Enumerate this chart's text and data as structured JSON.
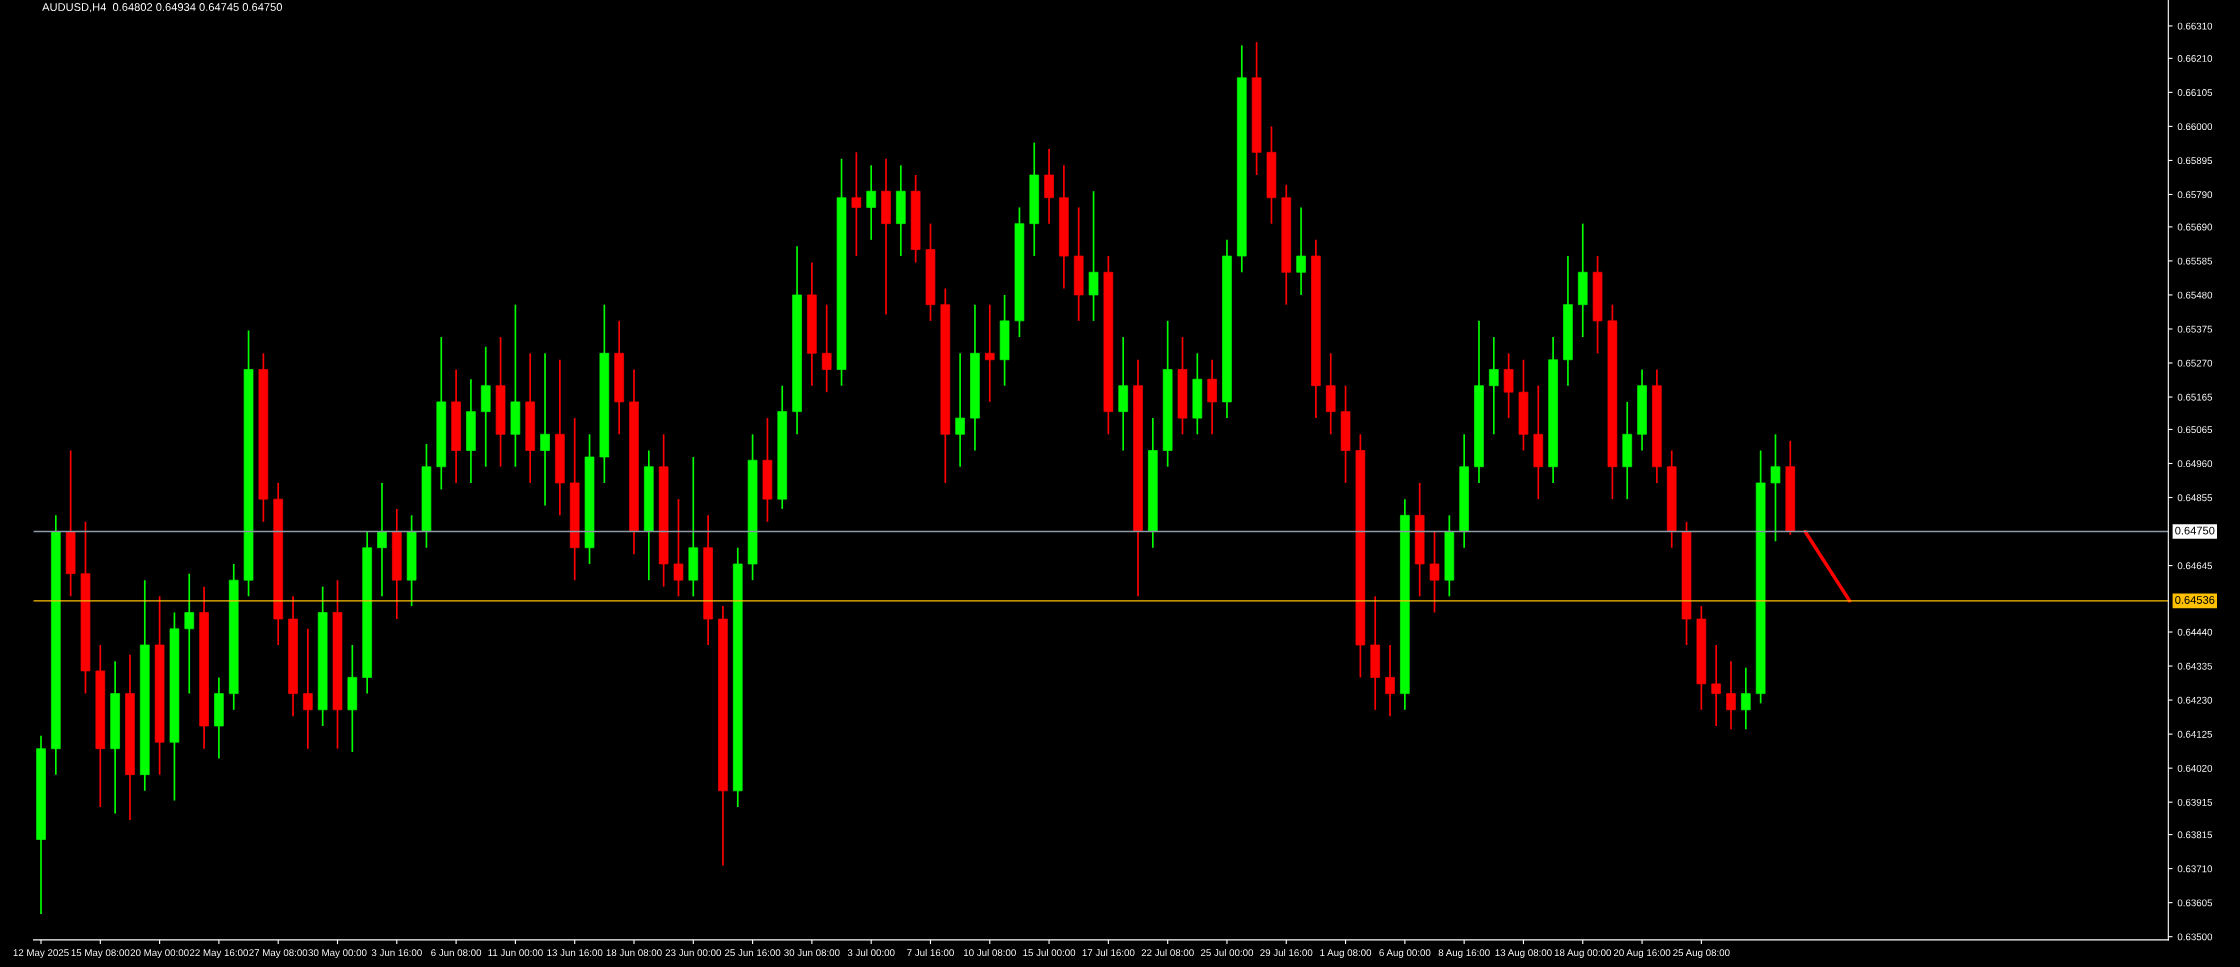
{
  "chart_data": {
    "type": "candlestick",
    "title": "AUDUSD,H4  0.64802 0.64934 0.64745 0.64750",
    "categories": [
      "12 May 2025",
      null,
      null,
      null,
      "15 May 08:00",
      null,
      null,
      null,
      "20 May 00:00",
      null,
      null,
      null,
      "22 May 16:00",
      null,
      null,
      null,
      "27 May 08:00",
      null,
      null,
      null,
      "30 May 00:00",
      null,
      null,
      null,
      "3 Jun 16:00",
      null,
      null,
      null,
      "6 Jun 08:00",
      null,
      null,
      null,
      "11 Jun 00:00",
      null,
      null,
      null,
      "13 Jun 16:00",
      null,
      null,
      null,
      "18 Jun 08:00",
      null,
      null,
      null,
      "23 Jun 00:00",
      null,
      null,
      null,
      "25 Jun 16:00",
      null,
      null,
      null,
      "30 Jun 08:00",
      null,
      null,
      null,
      "3 Jul 00:00",
      null,
      null,
      null,
      "7 Jul 16:00",
      null,
      null,
      null,
      "10 Jul 08:00",
      null,
      null,
      null,
      "15 Jul 00:00",
      null,
      null,
      null,
      "17 Jul 16:00",
      null,
      null,
      null,
      "22 Jul 08:00",
      null,
      null,
      null,
      "25 Jul 00:00",
      null,
      null,
      null,
      "29 Jul 16:00",
      null,
      null,
      null,
      "1 Aug 08:00",
      null,
      null,
      null,
      "6 Aug 00:00",
      null,
      null,
      null,
      "8 Aug 16:00",
      null,
      null,
      null,
      "13 Aug 08:00",
      null,
      null,
      null,
      "18 Aug 00:00",
      null,
      null,
      null,
      "20 Aug 16:00",
      null,
      null,
      null,
      "25 Aug 08:00",
      null,
      null,
      null,
      null,
      null,
      null,
      null,
      null,
      null,
      null,
      null,
      null,
      null,
      null,
      null,
      null,
      null,
      null,
      null,
      null,
      null,
      null,
      null,
      null,
      null,
      null,
      null,
      null,
      null,
      null,
      null
    ],
    "ohlc": [
      [
        0.638,
        0.6412,
        0.6357,
        0.6408
      ],
      [
        0.6408,
        0.648,
        0.64,
        0.6475
      ],
      [
        0.6475,
        0.65,
        0.6455,
        0.6462
      ],
      [
        0.6462,
        0.6478,
        0.6425,
        0.6432
      ],
      [
        0.6432,
        0.644,
        0.639,
        0.6408
      ],
      [
        0.6408,
        0.6435,
        0.6388,
        0.6425
      ],
      [
        0.6425,
        0.6437,
        0.6386,
        0.64
      ],
      [
        0.64,
        0.646,
        0.6395,
        0.644
      ],
      [
        0.644,
        0.6455,
        0.64,
        0.641
      ],
      [
        0.641,
        0.645,
        0.6392,
        0.6445
      ],
      [
        0.6445,
        0.6462,
        0.6425,
        0.645
      ],
      [
        0.645,
        0.6458,
        0.6408,
        0.6415
      ],
      [
        0.6415,
        0.643,
        0.6405,
        0.6425
      ],
      [
        0.6425,
        0.6465,
        0.642,
        0.646
      ],
      [
        0.646,
        0.6537,
        0.6455,
        0.6525
      ],
      [
        0.6525,
        0.653,
        0.6478,
        0.6485
      ],
      [
        0.6485,
        0.649,
        0.644,
        0.6448
      ],
      [
        0.6448,
        0.6455,
        0.6418,
        0.6425
      ],
      [
        0.6425,
        0.6445,
        0.6408,
        0.642
      ],
      [
        0.642,
        0.6458,
        0.6415,
        0.645
      ],
      [
        0.645,
        0.646,
        0.6408,
        0.642
      ],
      [
        0.642,
        0.644,
        0.6407,
        0.643
      ],
      [
        0.643,
        0.6475,
        0.6425,
        0.647
      ],
      [
        0.647,
        0.649,
        0.6455,
        0.6475
      ],
      [
        0.6475,
        0.6482,
        0.6448,
        0.646
      ],
      [
        0.646,
        0.648,
        0.6452,
        0.6475
      ],
      [
        0.6475,
        0.6502,
        0.647,
        0.6495
      ],
      [
        0.6495,
        0.6535,
        0.6488,
        0.6515
      ],
      [
        0.6515,
        0.6525,
        0.649,
        0.65
      ],
      [
        0.65,
        0.6522,
        0.649,
        0.6512
      ],
      [
        0.6512,
        0.6532,
        0.6495,
        0.652
      ],
      [
        0.652,
        0.6535,
        0.6495,
        0.6505
      ],
      [
        0.6505,
        0.6545,
        0.6495,
        0.6515
      ],
      [
        0.6515,
        0.653,
        0.649,
        0.65
      ],
      [
        0.65,
        0.653,
        0.6483,
        0.6505
      ],
      [
        0.6505,
        0.6528,
        0.648,
        0.649
      ],
      [
        0.649,
        0.651,
        0.646,
        0.647
      ],
      [
        0.647,
        0.6505,
        0.6465,
        0.6498
      ],
      [
        0.6498,
        0.6545,
        0.649,
        0.653
      ],
      [
        0.653,
        0.654,
        0.6505,
        0.6515
      ],
      [
        0.6515,
        0.6525,
        0.6468,
        0.6475
      ],
      [
        0.6475,
        0.65,
        0.646,
        0.6495
      ],
      [
        0.6495,
        0.6505,
        0.6458,
        0.6465
      ],
      [
        0.6465,
        0.6485,
        0.6455,
        0.646
      ],
      [
        0.646,
        0.6498,
        0.6455,
        0.647
      ],
      [
        0.647,
        0.648,
        0.644,
        0.6448
      ],
      [
        0.6448,
        0.6452,
        0.6372,
        0.6395
      ],
      [
        0.6395,
        0.647,
        0.639,
        0.6465
      ],
      [
        0.6465,
        0.6505,
        0.646,
        0.6497
      ],
      [
        0.6497,
        0.651,
        0.6478,
        0.6485
      ],
      [
        0.6485,
        0.652,
        0.6482,
        0.6512
      ],
      [
        0.6512,
        0.6563,
        0.6505,
        0.6548
      ],
      [
        0.6548,
        0.6558,
        0.652,
        0.653
      ],
      [
        0.653,
        0.6545,
        0.6518,
        0.6525
      ],
      [
        0.6525,
        0.659,
        0.652,
        0.6578
      ],
      [
        0.6578,
        0.6592,
        0.656,
        0.6575
      ],
      [
        0.6575,
        0.6588,
        0.6565,
        0.658
      ],
      [
        0.658,
        0.659,
        0.6542,
        0.657
      ],
      [
        0.657,
        0.6588,
        0.656,
        0.658
      ],
      [
        0.658,
        0.6585,
        0.6558,
        0.6562
      ],
      [
        0.6562,
        0.657,
        0.654,
        0.6545
      ],
      [
        0.6545,
        0.655,
        0.649,
        0.6505
      ],
      [
        0.6505,
        0.653,
        0.6495,
        0.651
      ],
      [
        0.651,
        0.6545,
        0.65,
        0.653
      ],
      [
        0.653,
        0.6545,
        0.6515,
        0.6528
      ],
      [
        0.6528,
        0.6548,
        0.652,
        0.654
      ],
      [
        0.654,
        0.6575,
        0.6535,
        0.657
      ],
      [
        0.657,
        0.6595,
        0.656,
        0.6585
      ],
      [
        0.6585,
        0.6593,
        0.657,
        0.6578
      ],
      [
        0.6578,
        0.6588,
        0.655,
        0.656
      ],
      [
        0.656,
        0.6575,
        0.654,
        0.6548
      ],
      [
        0.6548,
        0.658,
        0.654,
        0.6555
      ],
      [
        0.6555,
        0.656,
        0.6505,
        0.6512
      ],
      [
        0.6512,
        0.6535,
        0.65,
        0.652
      ],
      [
        0.652,
        0.6528,
        0.6455,
        0.6475
      ],
      [
        0.6475,
        0.651,
        0.647,
        0.65
      ],
      [
        0.65,
        0.654,
        0.6495,
        0.6525
      ],
      [
        0.6525,
        0.6535,
        0.6505,
        0.651
      ],
      [
        0.651,
        0.653,
        0.6505,
        0.6522
      ],
      [
        0.6522,
        0.6528,
        0.6505,
        0.6515
      ],
      [
        0.6515,
        0.6565,
        0.651,
        0.656
      ],
      [
        0.656,
        0.6625,
        0.6555,
        0.6615
      ],
      [
        0.6615,
        0.6626,
        0.6585,
        0.6592
      ],
      [
        0.6592,
        0.66,
        0.657,
        0.6578
      ],
      [
        0.6578,
        0.6582,
        0.6545,
        0.6555
      ],
      [
        0.6555,
        0.6575,
        0.6548,
        0.656
      ],
      [
        0.656,
        0.6565,
        0.651,
        0.652
      ],
      [
        0.652,
        0.653,
        0.6505,
        0.6512
      ],
      [
        0.6512,
        0.652,
        0.649,
        0.65
      ],
      [
        0.65,
        0.6505,
        0.643,
        0.644
      ],
      [
        0.644,
        0.6455,
        0.642,
        0.643
      ],
      [
        0.643,
        0.644,
        0.6418,
        0.6425
      ],
      [
        0.6425,
        0.6485,
        0.642,
        0.648
      ],
      [
        0.648,
        0.649,
        0.6455,
        0.6465
      ],
      [
        0.6465,
        0.6475,
        0.645,
        0.646
      ],
      [
        0.646,
        0.648,
        0.6455,
        0.6475
      ],
      [
        0.6475,
        0.6505,
        0.647,
        0.6495
      ],
      [
        0.6495,
        0.654,
        0.649,
        0.652
      ],
      [
        0.652,
        0.6535,
        0.6505,
        0.6525
      ],
      [
        0.6525,
        0.653,
        0.651,
        0.6518
      ],
      [
        0.6518,
        0.6528,
        0.65,
        0.6505
      ],
      [
        0.6505,
        0.652,
        0.6485,
        0.6495
      ],
      [
        0.6495,
        0.6535,
        0.649,
        0.6528
      ],
      [
        0.6528,
        0.656,
        0.652,
        0.6545
      ],
      [
        0.6545,
        0.657,
        0.6535,
        0.6555
      ],
      [
        0.6555,
        0.656,
        0.653,
        0.654
      ],
      [
        0.654,
        0.6545,
        0.6485,
        0.6495
      ],
      [
        0.6495,
        0.6515,
        0.6485,
        0.6505
      ],
      [
        0.6505,
        0.6525,
        0.65,
        0.652
      ],
      [
        0.652,
        0.6525,
        0.649,
        0.6495
      ],
      [
        0.6495,
        0.65,
        0.647,
        0.6475
      ],
      [
        0.6475,
        0.6478,
        0.644,
        0.6448
      ],
      [
        0.6448,
        0.6452,
        0.642,
        0.6428
      ],
      [
        0.6428,
        0.644,
        0.6415,
        0.6425
      ],
      [
        0.6425,
        0.6435,
        0.6414,
        0.642
      ],
      [
        0.642,
        0.6433,
        0.6414,
        0.6425
      ],
      [
        0.6425,
        0.65,
        0.6422,
        0.649
      ],
      [
        0.649,
        0.6505,
        0.6472,
        0.6495
      ],
      [
        0.6495,
        0.6503,
        0.6474,
        0.6475
      ],
      null,
      null,
      null,
      null,
      null,
      null,
      null,
      null,
      null,
      null,
      null,
      null,
      null,
      null,
      null,
      null,
      null,
      null,
      null,
      null,
      null,
      null,
      null,
      null,
      null
    ],
    "colors": [
      "#00ff00",
      "#00ff00",
      "#ff0000",
      "#ff0000",
      "#ff0000",
      "#00ff00",
      "#ff0000",
      "#00ff00",
      "#ff0000",
      "#00ff00",
      "#00ff00",
      "#ff0000",
      "#00ff00",
      "#00ff00",
      "#00ff00",
      "#ff0000",
      "#ff0000",
      "#ff0000",
      "#ff0000",
      "#00ff00",
      "#ff0000",
      "#00ff00",
      "#00ff00",
      "#00ff00",
      "#ff0000",
      "#00ff00",
      "#00ff00",
      "#00ff00",
      "#ff0000",
      "#00ff00",
      "#00ff00",
      "#ff0000",
      "#00ff00",
      "#ff0000",
      "#00ff00",
      "#ff0000",
      "#ff0000",
      "#00ff00",
      "#00ff00",
      "#ff0000",
      "#ff0000",
      "#00ff00",
      "#ff0000",
      "#ff0000",
      "#00ff00",
      "#ff0000",
      "#ff0000",
      "#00ff00",
      "#00ff00",
      "#ff0000",
      "#00ff00",
      "#00ff00",
      "#ff0000",
      "#ff0000",
      "#00ff00",
      "#ff0000",
      "#00ff00",
      "#ff0000",
      "#00ff00",
      "#ff0000",
      "#ff0000",
      "#ff0000",
      "#00ff00",
      "#00ff00",
      "#ff0000",
      "#00ff00",
      "#00ff00",
      "#00ff00",
      "#ff0000",
      "#ff0000",
      "#ff0000",
      "#00ff00",
      "#ff0000",
      "#00ff00",
      "#ff0000",
      "#00ff00",
      "#00ff00",
      "#ff0000",
      "#00ff00",
      "#ff0000",
      "#00ff00",
      "#00ff00",
      "#ff0000",
      "#ff0000",
      "#ff0000",
      "#00ff00",
      "#ff0000",
      "#ff0000",
      "#ff0000",
      "#ff0000",
      "#ff0000",
      "#ff0000",
      "#00ff00",
      "#ff0000",
      "#ff0000",
      "#00ff00",
      "#00ff00",
      "#00ff00",
      "#00ff00",
      "#ff0000",
      "#ff0000",
      "#ff0000",
      "#00ff00",
      "#00ff00",
      "#00ff00",
      "#ff0000",
      "#ff0000",
      "#00ff00",
      "#00ff00",
      "#ff0000",
      "#ff0000",
      "#ff0000",
      "#ff0000",
      "#ff0000",
      "#ff0000",
      "#00ff00",
      "#00ff00",
      "#00ff00",
      "#ff0000",
      null,
      null,
      null,
      null,
      null,
      null,
      null,
      null,
      null,
      null,
      null,
      null,
      null,
      null,
      null,
      null,
      null,
      null,
      null,
      null,
      null,
      null,
      null,
      null,
      null
    ],
    "series": [
      {
        "type": "line",
        "color": "#ff0000",
        "values": [
          null,
          null,
          null,
          null,
          null,
          null,
          null,
          null,
          null,
          null,
          null,
          null,
          null,
          null,
          null,
          null,
          null,
          null,
          null,
          null,
          null,
          null,
          null,
          null,
          null,
          null,
          null,
          null,
          null,
          null,
          null,
          null,
          null,
          null,
          null,
          null,
          null,
          null,
          null,
          null,
          null,
          null,
          null,
          null,
          null,
          null,
          null,
          null,
          null,
          null,
          null,
          null,
          null,
          null,
          null,
          null,
          null,
          null,
          null,
          null,
          null,
          null,
          null,
          null,
          null,
          null,
          null,
          null,
          null,
          null,
          null,
          null,
          null,
          null,
          null,
          null,
          null,
          null,
          null,
          null,
          null,
          null,
          null,
          null,
          null,
          null,
          null,
          null,
          null,
          null,
          null,
          null,
          null,
          null,
          null,
          null,
          null,
          null,
          null,
          null,
          null,
          null,
          null,
          null,
          null,
          null,
          null,
          null,
          null,
          null,
          null,
          null,
          null,
          null,
          null,
          null,
          null,
          null,
          null,
          0.6475,
          null,
          null,
          0.64536,
          null,
          null,
          null,
          null,
          null,
          null,
          null,
          null,
          null,
          null,
          null,
          null,
          null,
          null,
          null,
          null,
          null,
          null,
          null,
          null,
          null
        ]
      }
    ],
    "ylim": [
      0.6349,
      0.6639
    ],
    "yticks": [
      {
        "value": 0.6631,
        "label": "0.66310"
      },
      {
        "value": 0.6621,
        "label": "0.66210"
      },
      {
        "value": 0.66105,
        "label": "0.66105"
      },
      {
        "value": 0.66,
        "label": "0.66000"
      },
      {
        "value": 0.65895,
        "label": "0.65895"
      },
      {
        "value": 0.6579,
        "label": "0.65790"
      },
      {
        "value": 0.6569,
        "label": "0.65690"
      },
      {
        "value": 0.65585,
        "label": "0.65585"
      },
      {
        "value": 0.6548,
        "label": "0.65480"
      },
      {
        "value": 0.65375,
        "label": "0.65375"
      },
      {
        "value": 0.6527,
        "label": "0.65270"
      },
      {
        "value": 0.65165,
        "label": "0.65165"
      },
      {
        "value": 0.65065,
        "label": "0.65065"
      },
      {
        "value": 0.6496,
        "label": "0.64960"
      },
      {
        "value": 0.64855,
        "label": "0.64855"
      },
      {
        "value": 0.64645,
        "label": "0.64645"
      },
      {
        "value": 0.6444,
        "label": "0.64440"
      },
      {
        "value": 0.64335,
        "label": "0.64335"
      },
      {
        "value": 0.6423,
        "label": "0.64230"
      },
      {
        "value": 0.64125,
        "label": "0.64125"
      },
      {
        "value": 0.6402,
        "label": "0.64020"
      },
      {
        "value": 0.63915,
        "label": "0.63915"
      },
      {
        "value": 0.63815,
        "label": "0.63815"
      },
      {
        "value": 0.6371,
        "label": "0.63710"
      },
      {
        "value": 0.63605,
        "label": "0.63605"
      },
      {
        "value": 0.635,
        "label": "0.63500"
      }
    ],
    "ref_lines": [
      {
        "axis": "y",
        "value": 0.6475,
        "label": "0.64750",
        "color": "#8c9aa8"
      },
      {
        "axis": "y",
        "value": 0.64536,
        "label": "0.64536",
        "color": "#ffc000"
      }
    ],
    "grid": false,
    "legend": false
  }
}
